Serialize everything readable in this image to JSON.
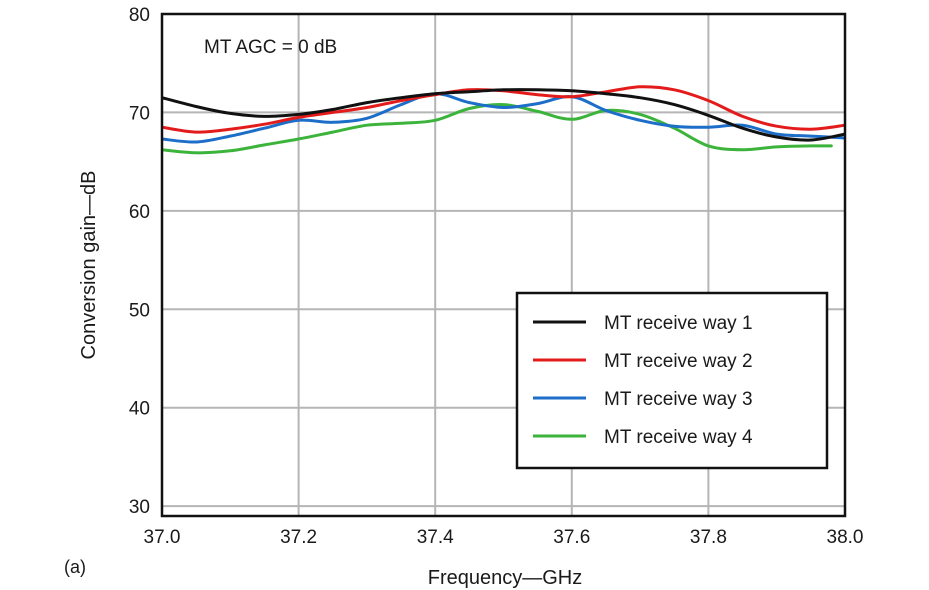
{
  "chart_data": {
    "type": "line",
    "panel_label": "(a)",
    "annotation": "MT AGC = 0 dB",
    "xlabel": "Frequency—GHz",
    "ylabel": "Conversion gain—dB",
    "xlim": [
      37.0,
      38.0
    ],
    "ylim": [
      29,
      80
    ],
    "xticks": [
      "37.0",
      "37.2",
      "37.4",
      "37.6",
      "37.8",
      "38.0"
    ],
    "yticks": [
      "30",
      "40",
      "50",
      "60",
      "70",
      "80"
    ],
    "grid": true,
    "legend_position": "bottom-right",
    "series": [
      {
        "name": "MT receive way 1",
        "color": "#111111",
        "x": [
          37.0,
          37.05,
          37.1,
          37.15,
          37.2,
          37.25,
          37.3,
          37.35,
          37.4,
          37.45,
          37.5,
          37.55,
          37.6,
          37.65,
          37.7,
          37.75,
          37.8,
          37.85,
          37.9,
          37.95,
          38.0
        ],
        "y": [
          71.5,
          70.6,
          69.9,
          69.6,
          69.8,
          70.3,
          71.0,
          71.5,
          71.9,
          72.1,
          72.3,
          72.3,
          72.2,
          71.9,
          71.5,
          70.8,
          69.7,
          68.4,
          67.5,
          67.2,
          67.8
        ]
      },
      {
        "name": "MT receive way 2",
        "color": "#e31b1b",
        "x": [
          37.0,
          37.05,
          37.1,
          37.15,
          37.2,
          37.25,
          37.3,
          37.35,
          37.4,
          37.45,
          37.5,
          37.55,
          37.6,
          37.65,
          37.7,
          37.75,
          37.8,
          37.85,
          37.9,
          37.95,
          38.0
        ],
        "y": [
          68.5,
          68.0,
          68.3,
          68.8,
          69.5,
          70.0,
          70.5,
          71.2,
          71.8,
          72.3,
          72.2,
          71.8,
          71.6,
          72.1,
          72.6,
          72.3,
          71.2,
          69.6,
          68.6,
          68.3,
          68.7
        ]
      },
      {
        "name": "MT receive way 3",
        "color": "#1c6ec8",
        "x": [
          37.0,
          37.05,
          37.1,
          37.15,
          37.2,
          37.25,
          37.3,
          37.35,
          37.4,
          37.45,
          37.5,
          37.55,
          37.6,
          37.65,
          37.7,
          37.75,
          37.8,
          37.85,
          37.9,
          37.95,
          38.0
        ],
        "y": [
          67.3,
          67.0,
          67.6,
          68.4,
          69.2,
          69.0,
          69.4,
          70.8,
          71.9,
          71.0,
          70.5,
          70.9,
          71.6,
          70.2,
          69.2,
          68.6,
          68.5,
          68.7,
          67.8,
          67.6,
          67.4
        ]
      },
      {
        "name": "MT receive way 4",
        "color": "#3cb43c",
        "x": [
          37.0,
          37.05,
          37.1,
          37.15,
          37.2,
          37.25,
          37.3,
          37.35,
          37.4,
          37.45,
          37.5,
          37.55,
          37.6,
          37.65,
          37.7,
          37.75,
          37.8,
          37.85,
          37.9,
          37.95,
          37.98
        ],
        "y": [
          66.2,
          65.9,
          66.1,
          66.7,
          67.3,
          68.0,
          68.7,
          68.9,
          69.2,
          70.4,
          70.8,
          70.1,
          69.3,
          70.2,
          69.8,
          68.4,
          66.6,
          66.2,
          66.5,
          66.6,
          66.6
        ]
      }
    ]
  }
}
